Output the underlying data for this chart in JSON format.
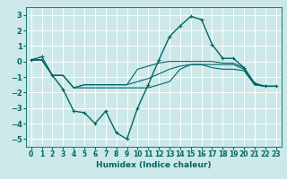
{
  "xlabel": "Humidex (Indice chaleur)",
  "ylabel": "",
  "background_color": "#cce8e8",
  "grid_color": "#ffffff",
  "line_color": "#006666",
  "xlim": [
    -0.5,
    23.5
  ],
  "ylim": [
    -5.5,
    3.5
  ],
  "yticks": [
    -5,
    -4,
    -3,
    -2,
    -1,
    0,
    1,
    2,
    3
  ],
  "xticks": [
    0,
    1,
    2,
    3,
    4,
    5,
    6,
    7,
    8,
    9,
    10,
    11,
    12,
    13,
    14,
    15,
    16,
    17,
    18,
    19,
    20,
    21,
    22,
    23
  ],
  "series": [
    [
      0.1,
      0.3,
      -0.9,
      -1.8,
      -3.2,
      -3.3,
      -4.0,
      -3.2,
      -4.6,
      -5.0,
      -3.0,
      -1.5,
      0.1,
      1.6,
      2.3,
      2.9,
      2.7,
      1.1,
      0.2,
      0.2,
      -0.4,
      -1.4,
      -1.6,
      -1.6
    ],
    [
      0.1,
      0.1,
      -0.9,
      -0.9,
      -1.7,
      -1.7,
      -1.7,
      -1.7,
      -1.7,
      -1.7,
      -1.7,
      -1.7,
      -1.5,
      -1.3,
      -0.5,
      -0.2,
      -0.2,
      -0.2,
      -0.2,
      -0.2,
      -0.5,
      -1.5,
      -1.6,
      -1.6
    ],
    [
      0.1,
      0.1,
      -0.9,
      -0.9,
      -1.7,
      -1.5,
      -1.5,
      -1.5,
      -1.5,
      -1.5,
      -0.5,
      -0.3,
      -0.1,
      0.0,
      0.0,
      0.0,
      0.0,
      0.0,
      -0.1,
      -0.1,
      -0.4,
      -1.5,
      -1.6,
      -1.6
    ],
    [
      0.1,
      0.1,
      -0.9,
      -0.9,
      -1.7,
      -1.5,
      -1.5,
      -1.5,
      -1.5,
      -1.5,
      -1.3,
      -1.1,
      -0.8,
      -0.5,
      -0.3,
      -0.2,
      -0.2,
      -0.4,
      -0.5,
      -0.5,
      -0.6,
      -1.5,
      -1.6,
      -1.6
    ]
  ]
}
